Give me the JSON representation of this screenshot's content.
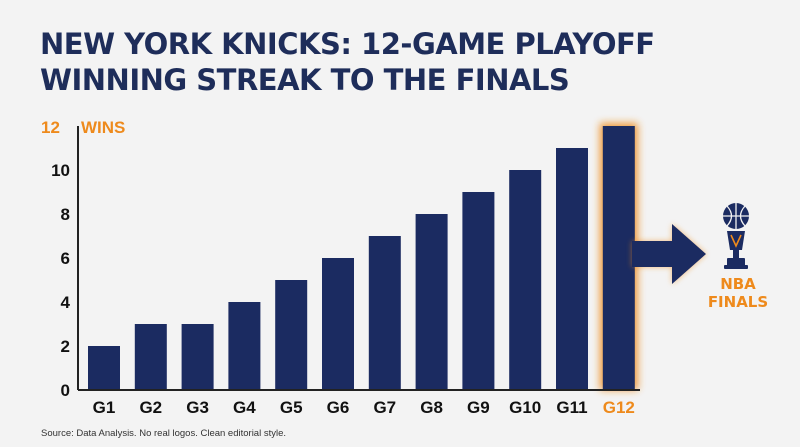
{
  "title_lines": [
    "NEW YORK KNICKS: 12-GAME PLAYOFF",
    "WINNING STREAK TO THE FINALS"
  ],
  "source": "Source: Data Analysis. No real logos. Clean editorial style.",
  "finals_label": [
    "NBA",
    "FINALS"
  ],
  "colors": {
    "bar": "#1b2b61",
    "highlight": "#ee8a1c",
    "background": "#f3f3f3",
    "axis": "#222222"
  },
  "icons": {
    "destination": "trophy-with-basketball-icon",
    "connector": "arrow-right-icon"
  },
  "chart_data": {
    "type": "bar",
    "categories": [
      "G1",
      "G2",
      "G3",
      "G4",
      "G5",
      "G6",
      "G7",
      "G8",
      "G9",
      "G10",
      "G11",
      "G12"
    ],
    "values": [
      2,
      3,
      3,
      4,
      5,
      6,
      7,
      8,
      9,
      10,
      11,
      12
    ],
    "highlight_index": 11,
    "ylim": [
      0,
      12
    ],
    "yticks": [
      "0",
      "2",
      "4",
      "6",
      "8",
      "10"
    ],
    "top_label": [
      "12",
      "WINS"
    ],
    "grid": false
  }
}
